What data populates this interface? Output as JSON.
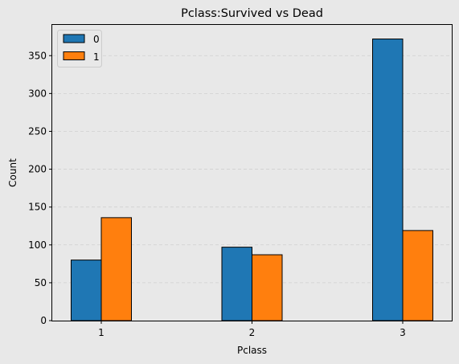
{
  "chart_data": {
    "type": "bar",
    "title": "Pclass:Survived vs Dead",
    "xlabel": "Pclass",
    "ylabel": "Count",
    "categories": [
      "1",
      "2",
      "3"
    ],
    "series": [
      {
        "name": "0",
        "values": [
          80,
          97,
          372
        ],
        "color": "#1f77b4"
      },
      {
        "name": "1",
        "values": [
          136,
          87,
          119
        ],
        "color": "#ff7f0e"
      }
    ],
    "yticks": [
      0,
      50,
      100,
      150,
      200,
      250,
      300,
      350
    ],
    "ylim": [
      0,
      390.6
    ],
    "grid": "horizontal-dashed",
    "legend_position": "top-left"
  }
}
